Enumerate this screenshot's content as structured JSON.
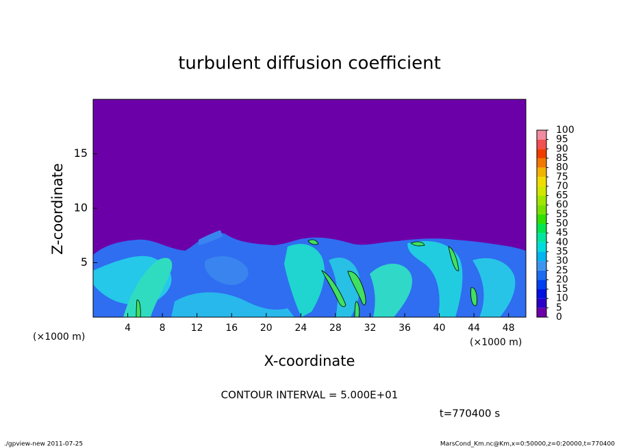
{
  "chart_data": {
    "type": "contour",
    "title": "turbulent diffusion coefficient",
    "x_label": "X-coordinate",
    "y_label": "Z-coordinate",
    "x_unit_label": "(×1000 m)",
    "xlim": [
      0,
      50
    ],
    "xticks": [
      4,
      8,
      12,
      16,
      20,
      24,
      28,
      32,
      36,
      40,
      44,
      48
    ],
    "ylim": [
      0,
      20
    ],
    "yticks": [
      5,
      10,
      15
    ],
    "background_color": "#6c00a8",
    "colorbar": {
      "levels": [
        0,
        5,
        10,
        15,
        20,
        25,
        30,
        35,
        40,
        45,
        50,
        55,
        60,
        65,
        70,
        75,
        80,
        85,
        90,
        95,
        100
      ],
      "colors": [
        "#6c00a8",
        "#2a00c8",
        "#0010e0",
        "#0040f0",
        "#1e6cf0",
        "#3c96f0",
        "#00b4f0",
        "#00dcdc",
        "#00e6a0",
        "#00e650",
        "#30e000",
        "#78e000",
        "#a0e600",
        "#d2e600",
        "#f0dc00",
        "#f0b400",
        "#f07800",
        "#f03c00",
        "#f05050",
        "#f08ca0"
      ]
    },
    "contour_interval": "CONTOUR INTERVAL = 5.000E+01",
    "time_label": "t=770400 s",
    "footer_left": "./gpview-new  2011-07-25",
    "footer_right": "MarsCond_Km.nc@Km,x=0:50000,z=0:20000,t=770400"
  }
}
